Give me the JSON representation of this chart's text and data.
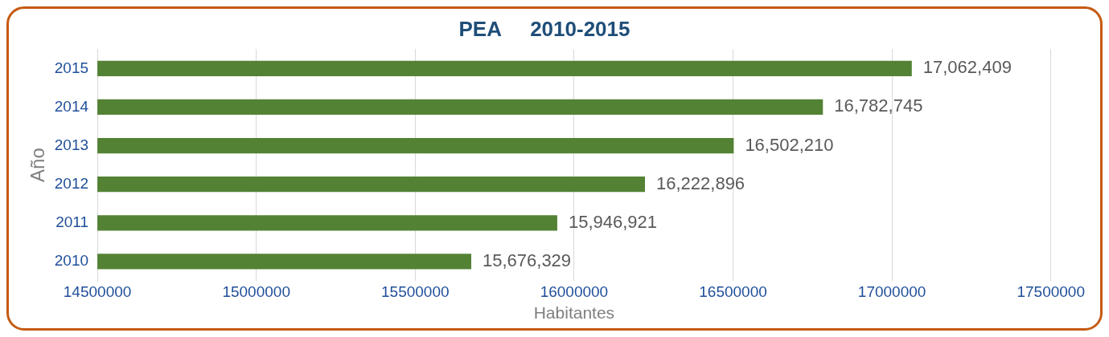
{
  "chart_data": {
    "type": "bar",
    "orientation": "horizontal",
    "title": "PEA     2010-2015",
    "xlabel": "Habitantes",
    "ylabel": "Año",
    "categories": [
      "2015",
      "2014",
      "2013",
      "2012",
      "2011",
      "2010"
    ],
    "values": [
      17062409,
      16782745,
      16502210,
      16222896,
      15946921,
      15676329
    ],
    "value_labels": [
      "17,062,409",
      "16,782,745",
      "16,502,210",
      "16,222,896",
      "15,946,921",
      "15,676,329"
    ],
    "color": "#548235",
    "xlim": [
      14500000,
      17500000
    ],
    "xticks": [
      14500000,
      15000000,
      15500000,
      16000000,
      16500000,
      17000000,
      17500000
    ],
    "grid": "x",
    "legend": false
  }
}
